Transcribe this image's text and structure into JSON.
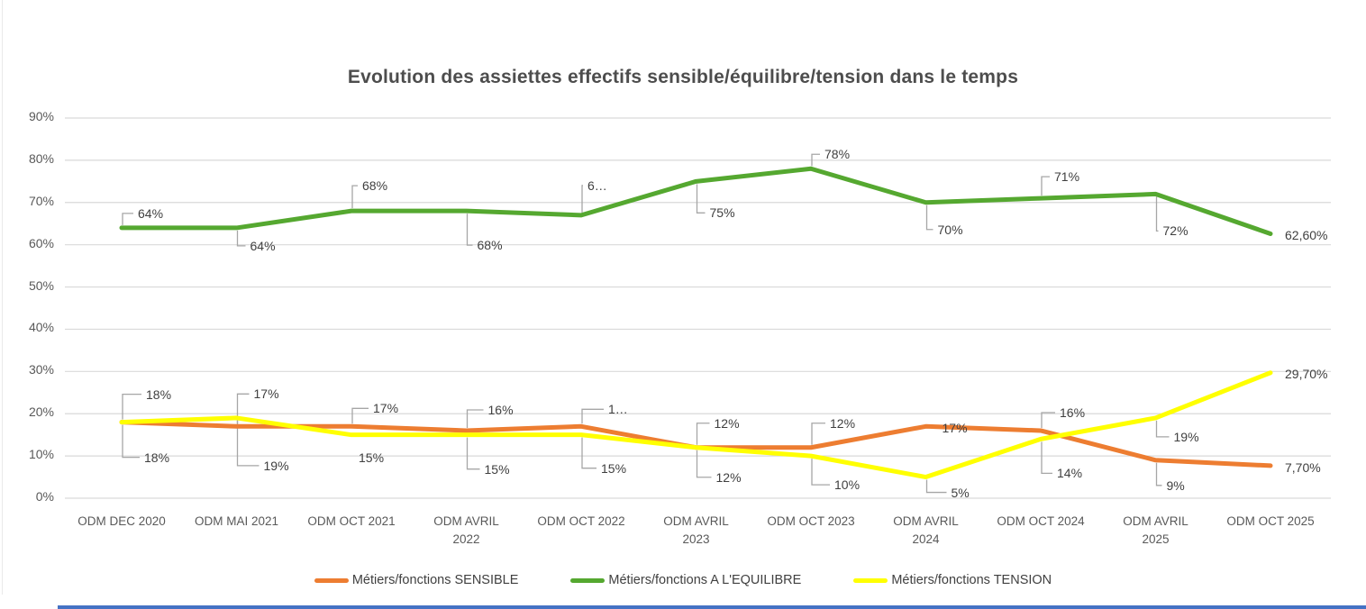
{
  "title": "Evolution des assiettes effectifs sensible/équilibre/tension dans le temps",
  "colors": {
    "grid": "#d9d9d9",
    "leader": "#a6a6a6",
    "axis_text": "#595959",
    "label_text": "#3f3f3f",
    "title_text": "#4d4d4d",
    "bottom_bar": "#4472C4"
  },
  "chart_data": {
    "type": "line",
    "title": "Evolution des assiettes effectifs sensible/équilibre/tension dans le temps",
    "grid": true,
    "legend_position": "bottom",
    "categories": [
      "ODM DEC 2020",
      "ODM MAI 2021",
      "ODM OCT 2021",
      "ODM AVRIL 2022",
      "ODM OCT 2022",
      "ODM AVRIL 2023",
      "ODM OCT 2023",
      "ODM AVRIL 2024",
      "ODM OCT 2024",
      "ODM AVRIL 2025",
      "ODM OCT 2025"
    ],
    "y_axis": {
      "min": 0,
      "max": 90,
      "step": 10,
      "ticks": [
        {
          "v": 90,
          "label": "90%"
        },
        {
          "v": 80,
          "label": "80%"
        },
        {
          "v": 70,
          "label": "70%"
        },
        {
          "v": 60,
          "label": "60%"
        },
        {
          "v": 50,
          "label": "50%"
        },
        {
          "v": 40,
          "label": "40%"
        },
        {
          "v": 30,
          "label": "30%"
        },
        {
          "v": 20,
          "label": "20%"
        },
        {
          "v": 10,
          "label": "10%"
        },
        {
          "v": 0,
          "label": "0%"
        }
      ]
    },
    "series": [
      {
        "name": "Métiers/fonctions SENSIBLE",
        "color": "#ED7D31",
        "values": [
          18,
          17,
          17,
          16,
          17,
          12,
          12,
          17,
          16,
          9,
          7.7
        ],
        "labels": [
          {
            "t": "18%",
            "p": "a",
            "l": true,
            "dx": 27,
            "dy": -31
          },
          {
            "t": "17%",
            "p": "a",
            "l": true,
            "dx": 19,
            "dy": -36
          },
          {
            "t": "17%",
            "p": "a",
            "l": true,
            "dx": 24,
            "dy": -20
          },
          {
            "t": "16%",
            "p": "a",
            "l": true,
            "dx": 24,
            "dy": -23
          },
          {
            "t": "1…",
            "p": "a",
            "l": true,
            "dx": 30,
            "dy": -19
          },
          {
            "t": "12%",
            "p": "a",
            "l": true,
            "dx": 20,
            "dy": -27
          },
          {
            "t": "12%",
            "p": "a",
            "l": true,
            "dx": 21,
            "dy": -27
          },
          {
            "t": "17%",
            "p": "o",
            "l": false,
            "dx": 18,
            "dy": 2
          },
          {
            "t": "16%",
            "p": "a",
            "l": true,
            "dx": 21,
            "dy": -20
          },
          {
            "t": "9%",
            "p": "b",
            "l": true,
            "dx": 12,
            "dy": 28
          },
          {
            "t": "7,70%",
            "p": "r",
            "l": false,
            "dx": 16,
            "dy": 2
          }
        ]
      },
      {
        "name": "Métiers/fonctions A L'EQUILIBRE",
        "color": "#55A830",
        "values": [
          64,
          64,
          68,
          68,
          67,
          75,
          78,
          70,
          71,
          72,
          62.6
        ],
        "labels": [
          {
            "t": "64%",
            "p": "a",
            "l": true,
            "dx": 18,
            "dy": -16
          },
          {
            "t": "64%",
            "p": "b",
            "l": true,
            "dx": 15,
            "dy": 20
          },
          {
            "t": "68%",
            "p": "a",
            "l": true,
            "dx": 12,
            "dy": -28
          },
          {
            "t": "68%",
            "p": "b",
            "l": true,
            "dx": 12,
            "dy": 38
          },
          {
            "t": "6…",
            "p": "a",
            "l": true,
            "dx": 7,
            "dy": -33
          },
          {
            "t": "75%",
            "p": "b",
            "l": true,
            "dx": 15,
            "dy": 35
          },
          {
            "t": "78%",
            "p": "a",
            "l": true,
            "dx": 15,
            "dy": -16
          },
          {
            "t": "70%",
            "p": "b",
            "l": true,
            "dx": 13,
            "dy": 30
          },
          {
            "t": "71%",
            "p": "a",
            "l": true,
            "dx": 15,
            "dy": -24
          },
          {
            "t": "72%",
            "p": "b",
            "l": true,
            "dx": 8,
            "dy": 41
          },
          {
            "t": "62,60%",
            "p": "r",
            "l": false,
            "dx": 16,
            "dy": 2
          }
        ]
      },
      {
        "name": "Métiers/fonctions TENSION",
        "color": "#FFFF00",
        "values": [
          18,
          19,
          15,
          15,
          15,
          12,
          10,
          5,
          14,
          19,
          29.7
        ],
        "labels": [
          {
            "t": "18%",
            "p": "b",
            "l": true,
            "dx": 25,
            "dy": 39
          },
          {
            "t": "19%",
            "p": "b",
            "l": true,
            "dx": 30,
            "dy": 53
          },
          {
            "t": "15%",
            "p": "b",
            "l": false,
            "dx": 8,
            "dy": 25
          },
          {
            "t": "15%",
            "p": "b",
            "l": true,
            "dx": 20,
            "dy": 38
          },
          {
            "t": "15%",
            "p": "b",
            "l": true,
            "dx": 22,
            "dy": 37
          },
          {
            "t": "12%",
            "p": "b",
            "l": true,
            "dx": 22,
            "dy": 33
          },
          {
            "t": "10%",
            "p": "b",
            "l": true,
            "dx": 26,
            "dy": 32
          },
          {
            "t": "5%",
            "p": "b",
            "l": true,
            "dx": 28,
            "dy": 17
          },
          {
            "t": "14%",
            "p": "b",
            "l": true,
            "dx": 18,
            "dy": 38
          },
          {
            "t": "19%",
            "p": "b",
            "l": true,
            "dx": 20,
            "dy": 21
          },
          {
            "t": "29,70%",
            "p": "r",
            "l": false,
            "dx": 16,
            "dy": 1
          }
        ]
      }
    ]
  }
}
